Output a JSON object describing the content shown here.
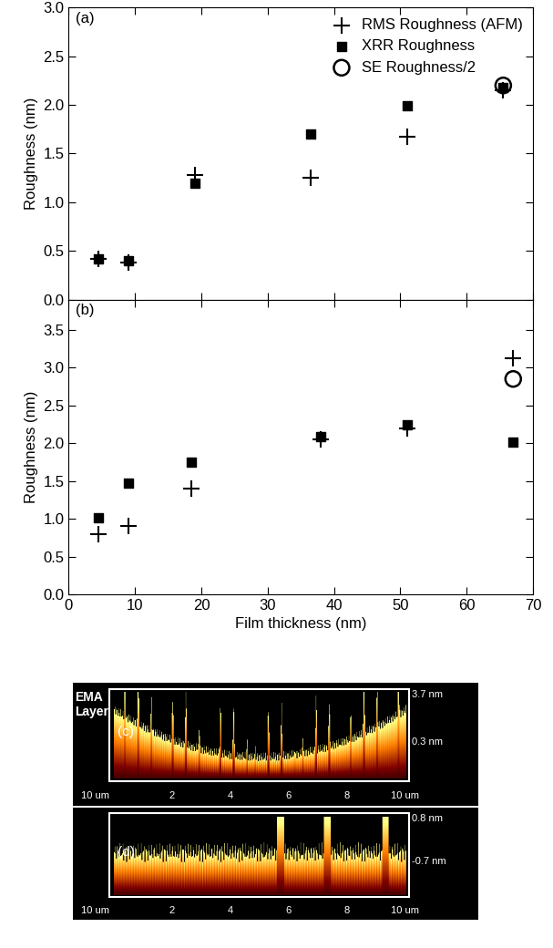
{
  "chart_data": [
    {
      "type": "scatter",
      "panel_label": "(a)",
      "ylabel": "Roughness (nm)",
      "xlim": [
        0,
        70
      ],
      "xticks": [
        0,
        10,
        20,
        30,
        40,
        50,
        60,
        70
      ],
      "ylim": [
        0,
        3.0
      ],
      "yticks": [
        {
          "value": 0,
          "label": "0.0"
        },
        0.5,
        {
          "value": 1,
          "label": "1.0"
        },
        1.5,
        {
          "value": 2,
          "label": "2.0"
        },
        2.5,
        {
          "value": 3,
          "label": "3.0"
        }
      ],
      "tick_labels": "y",
      "legend": "upper right",
      "series": [
        {
          "name": "RMS Roughness (AFM)",
          "color": "#000000",
          "marker": "plus",
          "x": [
            4.5,
            9,
            19,
            36.5,
            51,
            65.5
          ],
          "values": [
            0.42,
            0.38,
            1.28,
            1.25,
            1.67,
            2.15
          ]
        },
        {
          "name": "XRR Roughness",
          "color": "#000000",
          "marker": "square",
          "x": [
            4.5,
            9,
            19,
            36.5,
            51,
            65.5
          ],
          "values": [
            0.42,
            0.4,
            1.2,
            1.7,
            1.99,
            2.18
          ]
        },
        {
          "name": "SE Roughness/2",
          "color": "#000000",
          "marker": "circle",
          "x": [
            65.5
          ],
          "values": [
            2.2
          ]
        }
      ]
    },
    {
      "type": "scatter",
      "panel_label": "(b)",
      "ylabel": "Roughness (nm)",
      "xlabel": "Film thickness (nm)",
      "xlim": [
        0,
        70
      ],
      "xticks": [
        0,
        10,
        20,
        30,
        40,
        50,
        60,
        70
      ],
      "ylim": [
        0,
        3.9
      ],
      "yticks": [
        {
          "value": 0,
          "label": "0.0"
        },
        0.5,
        {
          "value": 1,
          "label": "1.0"
        },
        1.5,
        {
          "value": 2,
          "label": "2.0"
        },
        2.5,
        {
          "value": 3,
          "label": "3.0"
        },
        3.5
      ],
      "series": [
        {
          "name": "RMS Roughness (AFM)",
          "color": "#000000",
          "marker": "plus",
          "x": [
            4.5,
            9,
            18.5,
            38,
            51,
            67
          ],
          "values": [
            0.8,
            0.9,
            1.4,
            2.05,
            2.2,
            3.12
          ]
        },
        {
          "name": "XRR Roughness",
          "color": "#000000",
          "marker": "square",
          "x": [
            4.5,
            9,
            18.5,
            38,
            51,
            67
          ],
          "values": [
            1.01,
            1.47,
            1.75,
            2.09,
            2.24,
            2.01
          ]
        },
        {
          "name": "SE Roughness/2",
          "color": "#000000",
          "marker": "circle",
          "x": [
            67
          ],
          "values": [
            2.85
          ]
        }
      ]
    }
  ],
  "afm_images": [
    {
      "panel_label": "(c)",
      "side_text": "EMA\nLayer",
      "scale_labels": [
        "3.7 nm",
        "0.3 nm"
      ],
      "left_label": "10 um",
      "bottom_labels": [
        "2",
        "4",
        "6",
        "8",
        "10 um"
      ]
    },
    {
      "panel_label": "(d)",
      "scale_labels": [
        "0.8 nm",
        "-0.7 nm"
      ],
      "left_label": "10 um",
      "bottom_labels": [
        "2",
        "4",
        "6",
        "8",
        "10 um"
      ]
    }
  ]
}
